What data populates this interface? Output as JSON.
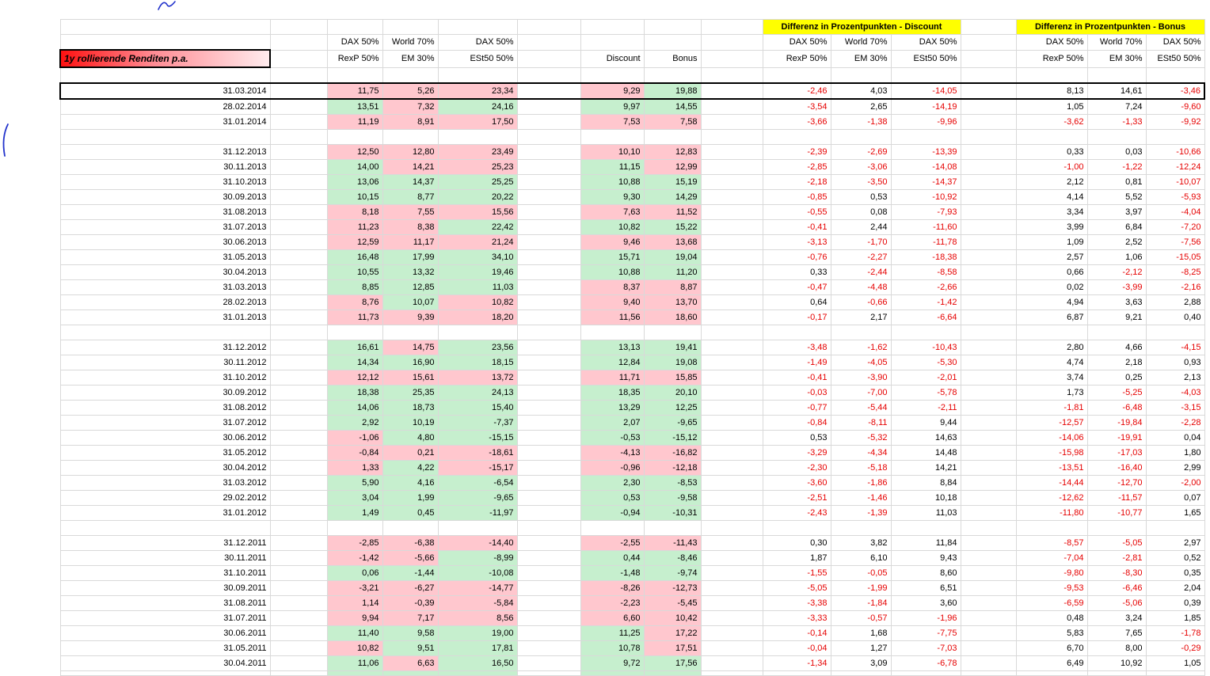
{
  "sheet": {
    "title": "1y rollierende Renditen p.a.",
    "diff_headers": {
      "discount": "Differenz in Prozentpunkten -  Discount",
      "bonus": "Differenz in Prozentpunkten -  Bonus"
    },
    "col_top": {
      "c1": "DAX 50%",
      "c2": "World 70%",
      "c3": "DAX 50%"
    },
    "col_bottom": {
      "c1": "RexP 50%",
      "c2": "EM 30%",
      "c3": "ESt50 50%",
      "discount": "Discount",
      "bonus": "Bonus"
    }
  },
  "colors": {
    "positive_bg": "#c6efce",
    "negative_bg": "#ffc7ce",
    "header_highlight": "#ffff00",
    "negative_text": "#e60000",
    "gridline": "#d9d9d9",
    "selection_border": "#000000",
    "title_gradient": [
      "#ff1111",
      "#ffecee"
    ],
    "ink_annotation": "#2233cc"
  },
  "decorations": {
    "ink_marks": [
      "ink-mark-top",
      "ink-mark-left-margin"
    ]
  },
  "rows": [
    {
      "blank": true
    },
    {
      "date": "31.03.2014",
      "selected": true,
      "values": [
        "11,75",
        "5,26",
        "23,34"
      ],
      "strategy": [
        "9,29",
        "19,88"
      ],
      "bg": "ppppg",
      "diff_discount": [
        "-2,46",
        "4,03",
        "-14,05"
      ],
      "diff_bonus": [
        "8,13",
        "14,61",
        "-3,46"
      ]
    },
    {
      "date": "28.02.2014",
      "values": [
        "13,51",
        "7,32",
        "24,16"
      ],
      "strategy": [
        "9,97",
        "14,55"
      ],
      "bg": "gpggg",
      "diff_discount": [
        "-3,54",
        "2,65",
        "-14,19"
      ],
      "diff_bonus": [
        "1,05",
        "7,24",
        "-9,60"
      ]
    },
    {
      "date": "31.01.2014",
      "values": [
        "11,19",
        "8,91",
        "17,50"
      ],
      "strategy": [
        "7,53",
        "7,58"
      ],
      "bg": "ppppp",
      "diff_discount": [
        "-3,66",
        "-1,38",
        "-9,96"
      ],
      "diff_bonus": [
        "-3,62",
        "-1,33",
        "-9,92"
      ]
    },
    {
      "blank": true
    },
    {
      "date": "31.12.2013",
      "values": [
        "12,50",
        "12,80",
        "23,49"
      ],
      "strategy": [
        "10,10",
        "12,83"
      ],
      "bg": "ppppp",
      "diff_discount": [
        "-2,39",
        "-2,69",
        "-13,39"
      ],
      "diff_bonus": [
        "0,33",
        "0,03",
        "-10,66"
      ]
    },
    {
      "date": "30.11.2013",
      "values": [
        "14,00",
        "14,21",
        "25,23"
      ],
      "strategy": [
        "11,15",
        "12,99"
      ],
      "bg": "gppgp",
      "diff_discount": [
        "-2,85",
        "-3,06",
        "-14,08"
      ],
      "diff_bonus": [
        "-1,00",
        "-1,22",
        "-12,24"
      ]
    },
    {
      "date": "31.10.2013",
      "values": [
        "13,06",
        "14,37",
        "25,25"
      ],
      "strategy": [
        "10,88",
        "15,19"
      ],
      "bg": "ggggg",
      "diff_discount": [
        "-2,18",
        "-3,50",
        "-14,37"
      ],
      "diff_bonus": [
        "2,12",
        "0,81",
        "-10,07"
      ]
    },
    {
      "date": "30.09.2013",
      "values": [
        "10,15",
        "8,77",
        "20,22"
      ],
      "strategy": [
        "9,30",
        "14,29"
      ],
      "bg": "ggggg",
      "diff_discount": [
        "-0,85",
        "0,53",
        "-10,92"
      ],
      "diff_bonus": [
        "4,14",
        "5,52",
        "-5,93"
      ]
    },
    {
      "date": "31.08.2013",
      "values": [
        "8,18",
        "7,55",
        "15,56"
      ],
      "strategy": [
        "7,63",
        "11,52"
      ],
      "bg": "ppppp",
      "diff_discount": [
        "-0,55",
        "0,08",
        "-7,93"
      ],
      "diff_bonus": [
        "3,34",
        "3,97",
        "-4,04"
      ]
    },
    {
      "date": "31.07.2013",
      "values": [
        "11,23",
        "8,38",
        "22,42"
      ],
      "strategy": [
        "10,82",
        "15,22"
      ],
      "bg": "ppggg",
      "diff_discount": [
        "-0,41",
        "2,44",
        "-11,60"
      ],
      "diff_bonus": [
        "3,99",
        "6,84",
        "-7,20"
      ]
    },
    {
      "date": "30.06.2013",
      "values": [
        "12,59",
        "11,17",
        "21,24"
      ],
      "strategy": [
        "9,46",
        "13,68"
      ],
      "bg": "ppppp",
      "diff_discount": [
        "-3,13",
        "-1,70",
        "-11,78"
      ],
      "diff_bonus": [
        "1,09",
        "2,52",
        "-7,56"
      ]
    },
    {
      "date": "31.05.2013",
      "values": [
        "16,48",
        "17,99",
        "34,10"
      ],
      "strategy": [
        "15,71",
        "19,04"
      ],
      "bg": "ggggg",
      "diff_discount": [
        "-0,76",
        "-2,27",
        "-18,38"
      ],
      "diff_bonus": [
        "2,57",
        "1,06",
        "-15,05"
      ]
    },
    {
      "date": "30.04.2013",
      "values": [
        "10,55",
        "13,32",
        "19,46"
      ],
      "strategy": [
        "10,88",
        "11,20"
      ],
      "bg": "ggggg",
      "diff_discount": [
        "0,33",
        "-2,44",
        "-8,58"
      ],
      "diff_bonus": [
        "0,66",
        "-2,12",
        "-8,25"
      ]
    },
    {
      "date": "31.03.2013",
      "values": [
        "8,85",
        "12,85",
        "11,03"
      ],
      "strategy": [
        "8,37",
        "8,87"
      ],
      "bg": "gggpp",
      "diff_discount": [
        "-0,47",
        "-4,48",
        "-2,66"
      ],
      "diff_bonus": [
        "0,02",
        "-3,99",
        "-2,16"
      ]
    },
    {
      "date": "28.02.2013",
      "values": [
        "8,76",
        "10,07",
        "10,82"
      ],
      "strategy": [
        "9,40",
        "13,70"
      ],
      "bg": "pgppp",
      "diff_discount": [
        "0,64",
        "-0,66",
        "-1,42"
      ],
      "diff_bonus": [
        "4,94",
        "3,63",
        "2,88"
      ]
    },
    {
      "date": "31.01.2013",
      "values": [
        "11,73",
        "9,39",
        "18,20"
      ],
      "strategy": [
        "11,56",
        "18,60"
      ],
      "bg": "ppppp",
      "diff_discount": [
        "-0,17",
        "2,17",
        "-6,64"
      ],
      "diff_bonus": [
        "6,87",
        "9,21",
        "0,40"
      ]
    },
    {
      "blank": true
    },
    {
      "date": "31.12.2012",
      "values": [
        "16,61",
        "14,75",
        "23,56"
      ],
      "strategy": [
        "13,13",
        "19,41"
      ],
      "bg": "gpggg",
      "diff_discount": [
        "-3,48",
        "-1,62",
        "-10,43"
      ],
      "diff_bonus": [
        "2,80",
        "4,66",
        "-4,15"
      ]
    },
    {
      "date": "30.11.2012",
      "values": [
        "14,34",
        "16,90",
        "18,15"
      ],
      "strategy": [
        "12,84",
        "19,08"
      ],
      "bg": "ggggg",
      "diff_discount": [
        "-1,49",
        "-4,05",
        "-5,30"
      ],
      "diff_bonus": [
        "4,74",
        "2,18",
        "0,93"
      ]
    },
    {
      "date": "31.10.2012",
      "values": [
        "12,12",
        "15,61",
        "13,72"
      ],
      "strategy": [
        "11,71",
        "15,85"
      ],
      "bg": "ppppp",
      "diff_discount": [
        "-0,41",
        "-3,90",
        "-2,01"
      ],
      "diff_bonus": [
        "3,74",
        "0,25",
        "2,13"
      ]
    },
    {
      "date": "30.09.2012",
      "values": [
        "18,38",
        "25,35",
        "24,13"
      ],
      "strategy": [
        "18,35",
        "20,10"
      ],
      "bg": "ggggg",
      "diff_discount": [
        "-0,03",
        "-7,00",
        "-5,78"
      ],
      "diff_bonus": [
        "1,73",
        "-5,25",
        "-4,03"
      ]
    },
    {
      "date": "31.08.2012",
      "values": [
        "14,06",
        "18,73",
        "15,40"
      ],
      "strategy": [
        "13,29",
        "12,25"
      ],
      "bg": "ggggg",
      "diff_discount": [
        "-0,77",
        "-5,44",
        "-2,11"
      ],
      "diff_bonus": [
        "-1,81",
        "-6,48",
        "-3,15"
      ]
    },
    {
      "date": "31.07.2012",
      "values": [
        "2,92",
        "10,19",
        "-7,37"
      ],
      "strategy": [
        "2,07",
        "-9,65"
      ],
      "bg": "ggggg",
      "diff_discount": [
        "-0,84",
        "-8,11",
        "9,44"
      ],
      "diff_bonus": [
        "-12,57",
        "-19,84",
        "-2,28"
      ]
    },
    {
      "date": "30.06.2012",
      "values": [
        "-1,06",
        "4,80",
        "-15,15"
      ],
      "strategy": [
        "-0,53",
        "-15,12"
      ],
      "bg": "pgggg",
      "diff_discount": [
        "0,53",
        "-5,32",
        "14,63"
      ],
      "diff_bonus": [
        "-14,06",
        "-19,91",
        "0,04"
      ]
    },
    {
      "date": "31.05.2012",
      "values": [
        "-0,84",
        "0,21",
        "-18,61"
      ],
      "strategy": [
        "-4,13",
        "-16,82"
      ],
      "bg": "ppppp",
      "diff_discount": [
        "-3,29",
        "-4,34",
        "14,48"
      ],
      "diff_bonus": [
        "-15,98",
        "-17,03",
        "1,80"
      ]
    },
    {
      "date": "30.04.2012",
      "values": [
        "1,33",
        "4,22",
        "-15,17"
      ],
      "strategy": [
        "-0,96",
        "-12,18"
      ],
      "bg": "pgppp",
      "diff_discount": [
        "-2,30",
        "-5,18",
        "14,21"
      ],
      "diff_bonus": [
        "-13,51",
        "-16,40",
        "2,99"
      ]
    },
    {
      "date": "31.03.2012",
      "values": [
        "5,90",
        "4,16",
        "-6,54"
      ],
      "strategy": [
        "2,30",
        "-8,53"
      ],
      "bg": "ggggg",
      "diff_discount": [
        "-3,60",
        "-1,86",
        "8,84"
      ],
      "diff_bonus": [
        "-14,44",
        "-12,70",
        "-2,00"
      ]
    },
    {
      "date": "29.02.2012",
      "values": [
        "3,04",
        "1,99",
        "-9,65"
      ],
      "strategy": [
        "0,53",
        "-9,58"
      ],
      "bg": "ggggg",
      "diff_discount": [
        "-2,51",
        "-1,46",
        "10,18"
      ],
      "diff_bonus": [
        "-12,62",
        "-11,57",
        "0,07"
      ]
    },
    {
      "date": "31.01.2012",
      "values": [
        "1,49",
        "0,45",
        "-11,97"
      ],
      "strategy": [
        "-0,94",
        "-10,31"
      ],
      "bg": "ggggg",
      "diff_discount": [
        "-2,43",
        "-1,39",
        "11,03"
      ],
      "diff_bonus": [
        "-11,80",
        "-10,77",
        "1,65"
      ]
    },
    {
      "blank": true
    },
    {
      "date": "31.12.2011",
      "values": [
        "-2,85",
        "-6,38",
        "-14,40"
      ],
      "strategy": [
        "-2,55",
        "-11,43"
      ],
      "bg": "ppppp",
      "diff_discount": [
        "0,30",
        "3,82",
        "11,84"
      ],
      "diff_bonus": [
        "-8,57",
        "-5,05",
        "2,97"
      ]
    },
    {
      "date": "30.11.2011",
      "values": [
        "-1,42",
        "-5,66",
        "-8,99"
      ],
      "strategy": [
        "0,44",
        "-8,46"
      ],
      "bg": "ppggg",
      "diff_discount": [
        "1,87",
        "6,10",
        "9,43"
      ],
      "diff_bonus": [
        "-7,04",
        "-2,81",
        "0,52"
      ]
    },
    {
      "date": "31.10.2011",
      "values": [
        "0,06",
        "-1,44",
        "-10,08"
      ],
      "strategy": [
        "-1,48",
        "-9,74"
      ],
      "bg": "ggggg",
      "diff_discount": [
        "-1,55",
        "-0,05",
        "8,60"
      ],
      "diff_bonus": [
        "-9,80",
        "-8,30",
        "0,35"
      ]
    },
    {
      "date": "30.09.2011",
      "values": [
        "-3,21",
        "-6,27",
        "-14,77"
      ],
      "strategy": [
        "-8,26",
        "-12,73"
      ],
      "bg": "ppppp",
      "diff_discount": [
        "-5,05",
        "-1,99",
        "6,51"
      ],
      "diff_bonus": [
        "-9,53",
        "-6,46",
        "2,04"
      ]
    },
    {
      "date": "31.08.2011",
      "values": [
        "1,14",
        "-0,39",
        "-5,84"
      ],
      "strategy": [
        "-2,23",
        "-5,45"
      ],
      "bg": "ppppp",
      "diff_discount": [
        "-3,38",
        "-1,84",
        "3,60"
      ],
      "diff_bonus": [
        "-6,59",
        "-5,06",
        "0,39"
      ]
    },
    {
      "date": "31.07.2011",
      "values": [
        "9,94",
        "7,17",
        "8,56"
      ],
      "strategy": [
        "6,60",
        "10,42"
      ],
      "bg": "ppppp",
      "diff_discount": [
        "-3,33",
        "-0,57",
        "-1,96"
      ],
      "diff_bonus": [
        "0,48",
        "3,24",
        "1,85"
      ]
    },
    {
      "date": "30.06.2011",
      "values": [
        "11,40",
        "9,58",
        "19,00"
      ],
      "strategy": [
        "11,25",
        "17,22"
      ],
      "bg": "ggggp",
      "diff_discount": [
        "-0,14",
        "1,68",
        "-7,75"
      ],
      "diff_bonus": [
        "5,83",
        "7,65",
        "-1,78"
      ]
    },
    {
      "date": "31.05.2011",
      "values": [
        "10,82",
        "9,51",
        "17,81"
      ],
      "strategy": [
        "10,78",
        "17,51"
      ],
      "bg": "pgggp",
      "diff_discount": [
        "-0,04",
        "1,27",
        "-7,03"
      ],
      "diff_bonus": [
        "6,70",
        "8,00",
        "-0,29"
      ]
    },
    {
      "date": "30.04.2011",
      "values": [
        "11,06",
        "6,63",
        "16,50"
      ],
      "strategy": [
        "9,72",
        "17,56"
      ],
      "bg": "gpggg",
      "diff_discount": [
        "-1,34",
        "3,09",
        "-6,78"
      ],
      "diff_bonus": [
        "6,49",
        "10,92",
        "1,05"
      ]
    }
  ],
  "partial_bottom_row": {
    "bg": "ggggg"
  }
}
